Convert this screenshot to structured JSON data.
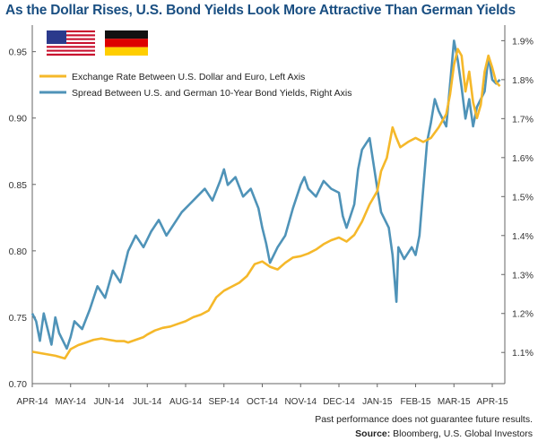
{
  "title": "As the Dollar Rises, U.S. Bond Yields Look More Attractive Than German Yields",
  "flags": [
    "us-flag",
    "germany-flag"
  ],
  "footer": {
    "disclaimer": "Past performance does not guarantee future results.",
    "source_label": "Source:",
    "source_text": "Bloomberg, U.S. Global Investors"
  },
  "chart_data": {
    "type": "line",
    "title": "As the Dollar Rises, U.S. Bond Yields Look More Attractive Than German Yields",
    "x_ticks": [
      "APR-14",
      "MAY-14",
      "JUN-14",
      "JUL-14",
      "AUG-14",
      "SEP-14",
      "OCT-14",
      "NOV-14",
      "DEC-14",
      "JAN-15",
      "FEB-15",
      "MAR-15",
      "APR-15"
    ],
    "y_left": {
      "range": [
        0.7,
        0.97
      ],
      "ticks": [
        "0.70",
        "0.75",
        "0.80",
        "0.85",
        "0.90",
        "0.95"
      ]
    },
    "y_right": {
      "range": [
        1.02,
        1.94
      ],
      "ticks": [
        "1.1%",
        "1.2%",
        "1.3%",
        "1.4%",
        "1.5%",
        "1.6%",
        "1.7%",
        "1.8%",
        "1.9%"
      ]
    },
    "grid": false,
    "legend_position": "top-left",
    "series": [
      {
        "name": "Exchange Rate Between U.S. Dollar and Euro, Left Axis",
        "axis": "left",
        "color": "#f5b82a",
        "points": [
          [
            0,
            0.724
          ],
          [
            0.2,
            0.723
          ],
          [
            0.4,
            0.722
          ],
          [
            0.6,
            0.721
          ],
          [
            0.85,
            0.719
          ],
          [
            1,
            0.726
          ],
          [
            1.2,
            0.729
          ],
          [
            1.4,
            0.731
          ],
          [
            1.6,
            0.733
          ],
          [
            1.8,
            0.734
          ],
          [
            2,
            0.733
          ],
          [
            2.2,
            0.732
          ],
          [
            2.4,
            0.732
          ],
          [
            2.5,
            0.731
          ],
          [
            2.7,
            0.733
          ],
          [
            2.9,
            0.735
          ],
          [
            3,
            0.737
          ],
          [
            3.2,
            0.74
          ],
          [
            3.4,
            0.742
          ],
          [
            3.6,
            0.743
          ],
          [
            3.8,
            0.745
          ],
          [
            4,
            0.747
          ],
          [
            4.2,
            0.75
          ],
          [
            4.4,
            0.752
          ],
          [
            4.6,
            0.755
          ],
          [
            4.8,
            0.765
          ],
          [
            5,
            0.77
          ],
          [
            5.2,
            0.773
          ],
          [
            5.4,
            0.776
          ],
          [
            5.6,
            0.781
          ],
          [
            5.8,
            0.79
          ],
          [
            6,
            0.792
          ],
          [
            6.2,
            0.788
          ],
          [
            6.4,
            0.786
          ],
          [
            6.6,
            0.791
          ],
          [
            6.8,
            0.795
          ],
          [
            7,
            0.796
          ],
          [
            7.2,
            0.798
          ],
          [
            7.4,
            0.801
          ],
          [
            7.6,
            0.805
          ],
          [
            7.8,
            0.808
          ],
          [
            8,
            0.81
          ],
          [
            8.2,
            0.807
          ],
          [
            8.4,
            0.812
          ],
          [
            8.6,
            0.822
          ],
          [
            8.8,
            0.835
          ],
          [
            9,
            0.845
          ],
          [
            9.1,
            0.86
          ],
          [
            9.25,
            0.87
          ],
          [
            9.4,
            0.893
          ],
          [
            9.5,
            0.885
          ],
          [
            9.6,
            0.878
          ],
          [
            9.8,
            0.882
          ],
          [
            10,
            0.885
          ],
          [
            10.2,
            0.882
          ],
          [
            10.4,
            0.885
          ],
          [
            10.6,
            0.893
          ],
          [
            10.8,
            0.903
          ],
          [
            10.9,
            0.918
          ],
          [
            11,
            0.94
          ],
          [
            11.1,
            0.952
          ],
          [
            11.2,
            0.947
          ],
          [
            11.3,
            0.92
          ],
          [
            11.4,
            0.935
          ],
          [
            11.5,
            0.912
          ],
          [
            11.6,
            0.9
          ],
          [
            11.7,
            0.91
          ],
          [
            11.8,
            0.935
          ],
          [
            11.9,
            0.947
          ],
          [
            12,
            0.938
          ],
          [
            12.1,
            0.927
          ],
          [
            12.2,
            0.924
          ]
        ]
      },
      {
        "name": "Spread Between U.S. and German 10-Year Bond Yields, Right Axis",
        "axis": "right",
        "color": "#4f93b8",
        "points": [
          [
            0,
            1.2
          ],
          [
            0.1,
            1.18
          ],
          [
            0.2,
            1.13
          ],
          [
            0.3,
            1.2
          ],
          [
            0.4,
            1.16
          ],
          [
            0.5,
            1.12
          ],
          [
            0.6,
            1.19
          ],
          [
            0.7,
            1.15
          ],
          [
            0.8,
            1.13
          ],
          [
            0.9,
            1.11
          ],
          [
            1,
            1.14
          ],
          [
            1.1,
            1.18
          ],
          [
            1.3,
            1.16
          ],
          [
            1.5,
            1.21
          ],
          [
            1.7,
            1.27
          ],
          [
            1.9,
            1.24
          ],
          [
            2.1,
            1.31
          ],
          [
            2.3,
            1.28
          ],
          [
            2.5,
            1.36
          ],
          [
            2.7,
            1.4
          ],
          [
            2.9,
            1.37
          ],
          [
            3.1,
            1.41
          ],
          [
            3.3,
            1.44
          ],
          [
            3.5,
            1.4
          ],
          [
            3.7,
            1.43
          ],
          [
            3.9,
            1.46
          ],
          [
            4.1,
            1.48
          ],
          [
            4.3,
            1.5
          ],
          [
            4.5,
            1.52
          ],
          [
            4.7,
            1.49
          ],
          [
            4.9,
            1.54
          ],
          [
            5,
            1.57
          ],
          [
            5.1,
            1.53
          ],
          [
            5.3,
            1.55
          ],
          [
            5.5,
            1.5
          ],
          [
            5.7,
            1.52
          ],
          [
            5.9,
            1.47
          ],
          [
            6,
            1.42
          ],
          [
            6.1,
            1.38
          ],
          [
            6.2,
            1.33
          ],
          [
            6.4,
            1.37
          ],
          [
            6.6,
            1.4
          ],
          [
            6.8,
            1.47
          ],
          [
            7,
            1.53
          ],
          [
            7.1,
            1.55
          ],
          [
            7.2,
            1.52
          ],
          [
            7.4,
            1.5
          ],
          [
            7.6,
            1.54
          ],
          [
            7.8,
            1.52
          ],
          [
            8,
            1.51
          ],
          [
            8.1,
            1.45
          ],
          [
            8.2,
            1.42
          ],
          [
            8.4,
            1.48
          ],
          [
            8.5,
            1.57
          ],
          [
            8.6,
            1.62
          ],
          [
            8.8,
            1.65
          ],
          [
            9,
            1.52
          ],
          [
            9.1,
            1.46
          ],
          [
            9.3,
            1.42
          ],
          [
            9.4,
            1.35
          ],
          [
            9.5,
            1.23
          ],
          [
            9.55,
            1.37
          ],
          [
            9.7,
            1.34
          ],
          [
            9.9,
            1.37
          ],
          [
            10,
            1.35
          ],
          [
            10.1,
            1.4
          ],
          [
            10.2,
            1.52
          ],
          [
            10.3,
            1.64
          ],
          [
            10.4,
            1.69
          ],
          [
            10.5,
            1.75
          ],
          [
            10.6,
            1.72
          ],
          [
            10.8,
            1.68
          ],
          [
            11,
            1.9
          ],
          [
            11.1,
            1.85
          ],
          [
            11.2,
            1.78
          ],
          [
            11.3,
            1.7
          ],
          [
            11.4,
            1.75
          ],
          [
            11.5,
            1.68
          ],
          [
            11.6,
            1.73
          ],
          [
            11.8,
            1.77
          ],
          [
            11.9,
            1.86
          ],
          [
            12,
            1.8
          ],
          [
            12.1,
            1.79
          ],
          [
            12.2,
            1.8
          ]
        ]
      }
    ]
  }
}
